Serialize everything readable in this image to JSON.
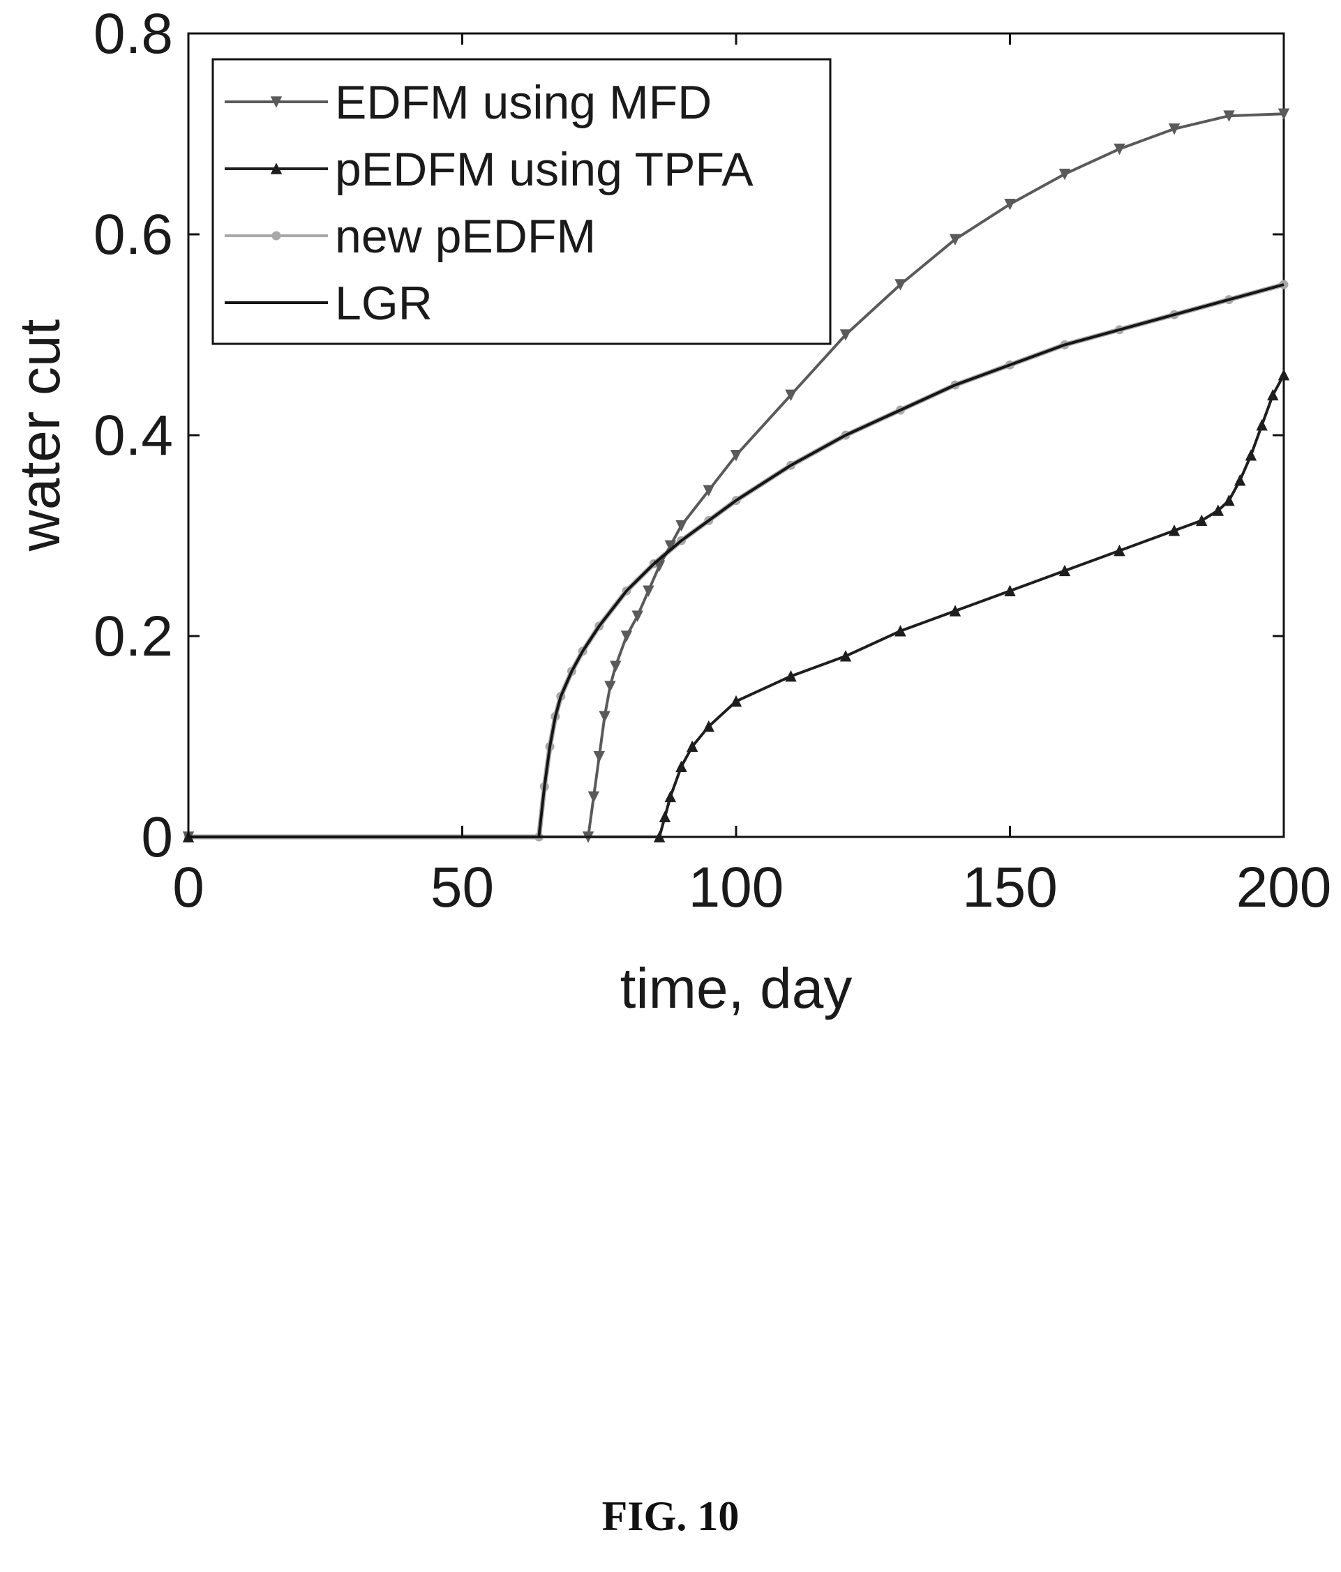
{
  "figure_caption": "FIG. 10",
  "colors": {
    "edfm": "#5a5a5a",
    "pedfm": "#1e1e1e",
    "new_pedfm": "#a8a8a8",
    "lgr": "#151515",
    "axes": "#111111"
  },
  "chart_data": {
    "type": "line",
    "title": "",
    "xlabel": "time, day",
    "ylabel": "water cut",
    "xlim": [
      0,
      200
    ],
    "ylim": [
      0,
      0.8
    ],
    "xticks": [
      0,
      50,
      100,
      150,
      200
    ],
    "xtick_labels": [
      "0",
      "50",
      "100",
      "150",
      "200"
    ],
    "yticks": [
      0,
      0.2,
      0.4,
      0.6,
      0.8
    ],
    "ytick_labels": [
      "0",
      "0.2",
      "0.4",
      "0.6",
      "0.8"
    ],
    "grid": false,
    "legend_position": "top-left",
    "series": [
      {
        "name": "EDFM using MFD",
        "marker": "triangle-down",
        "color_key": "edfm",
        "x": [
          0,
          73,
          74,
          75,
          76,
          77,
          78,
          80,
          82,
          84,
          86,
          88,
          90,
          95,
          100,
          110,
          120,
          130,
          140,
          150,
          160,
          170,
          180,
          190,
          200
        ],
        "y": [
          0,
          0,
          0.04,
          0.08,
          0.12,
          0.15,
          0.17,
          0.2,
          0.22,
          0.245,
          0.27,
          0.29,
          0.31,
          0.345,
          0.38,
          0.44,
          0.5,
          0.55,
          0.595,
          0.63,
          0.66,
          0.685,
          0.705,
          0.718,
          0.72
        ]
      },
      {
        "name": "pEDFM using TPFA",
        "marker": "triangle-up",
        "color_key": "pedfm",
        "x": [
          0,
          86,
          87,
          88,
          90,
          92,
          95,
          100,
          110,
          120,
          130,
          140,
          150,
          160,
          170,
          180,
          185,
          188,
          190,
          192,
          194,
          196,
          198,
          200
        ],
        "y": [
          0,
          0,
          0.02,
          0.04,
          0.07,
          0.09,
          0.11,
          0.135,
          0.16,
          0.18,
          0.205,
          0.225,
          0.245,
          0.265,
          0.285,
          0.305,
          0.315,
          0.325,
          0.335,
          0.355,
          0.38,
          0.41,
          0.44,
          0.46
        ]
      },
      {
        "name": "new pEDFM",
        "marker": "circle",
        "color_key": "new_pedfm",
        "x": [
          0,
          64,
          65,
          66,
          67,
          68,
          70,
          72,
          75,
          80,
          85,
          90,
          95,
          100,
          110,
          120,
          130,
          140,
          150,
          160,
          170,
          180,
          190,
          200
        ],
        "y": [
          0,
          0,
          0.05,
          0.09,
          0.12,
          0.14,
          0.165,
          0.185,
          0.21,
          0.245,
          0.272,
          0.295,
          0.315,
          0.335,
          0.37,
          0.4,
          0.425,
          0.45,
          0.47,
          0.49,
          0.505,
          0.52,
          0.535,
          0.55
        ]
      },
      {
        "name": "LGR",
        "marker": "none",
        "color_key": "lgr",
        "x": [
          0,
          64,
          65,
          66,
          67,
          68,
          70,
          72,
          75,
          80,
          85,
          90,
          95,
          100,
          110,
          120,
          130,
          140,
          150,
          160,
          170,
          180,
          190,
          200
        ],
        "y": [
          0,
          0,
          0.05,
          0.09,
          0.12,
          0.14,
          0.165,
          0.185,
          0.21,
          0.245,
          0.272,
          0.295,
          0.315,
          0.335,
          0.37,
          0.4,
          0.425,
          0.45,
          0.47,
          0.49,
          0.505,
          0.52,
          0.535,
          0.55
        ]
      }
    ]
  }
}
